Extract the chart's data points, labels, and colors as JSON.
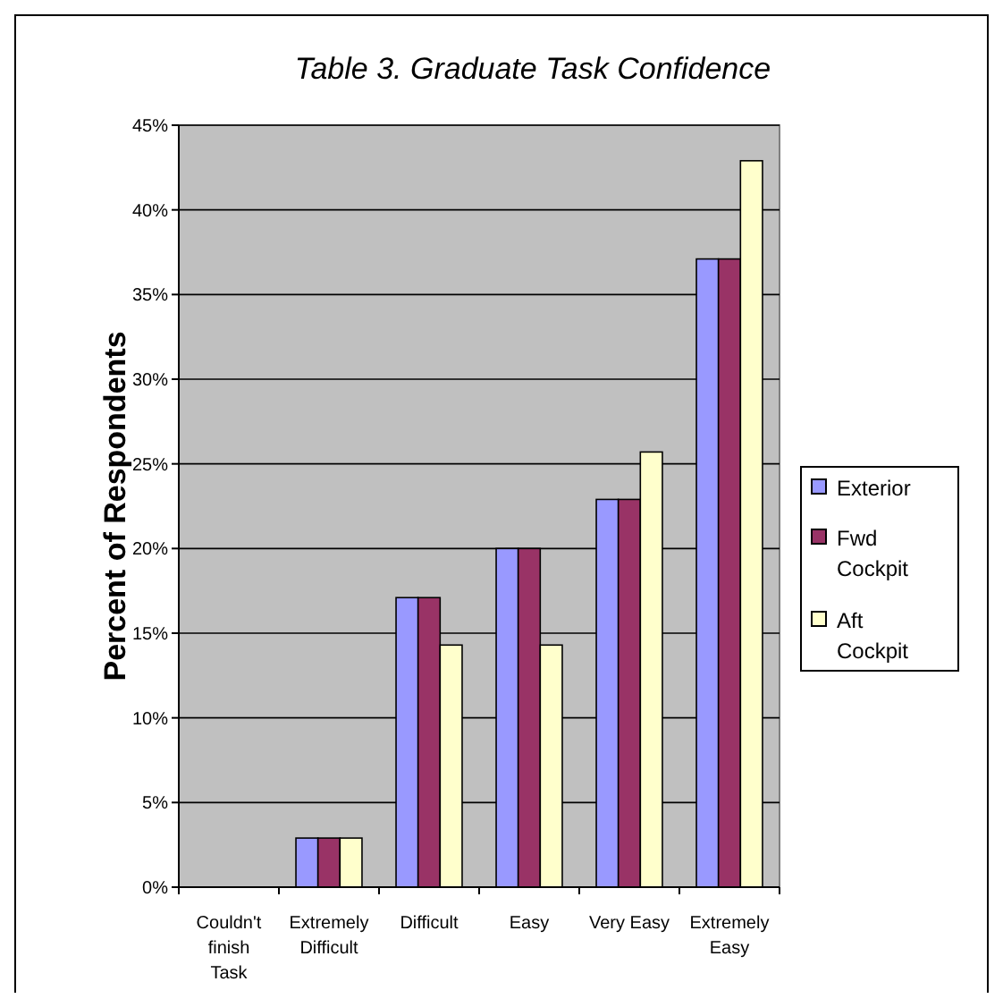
{
  "chart_data": {
    "type": "bar",
    "title": "Table 3.  Graduate Task Confidence",
    "ylabel": "Percent of Respondents",
    "categories": [
      "Couldn't finish Task",
      "Extremely Difficult",
      "Difficult",
      "Easy",
      "Very Easy",
      "Extremely Easy"
    ],
    "series": [
      {
        "name": "Exterior",
        "color": "#9999ff",
        "values": [
          0,
          2.9,
          17.1,
          20,
          22.9,
          37.1
        ]
      },
      {
        "name": "Fwd Cockpit",
        "color": "#993366",
        "values": [
          0,
          2.9,
          17.1,
          20,
          22.9,
          37.1
        ]
      },
      {
        "name": "Aft Cockpit",
        "color": "#ffffcc",
        "values": [
          0,
          2.9,
          14.3,
          14.3,
          25.7,
          42.9
        ]
      }
    ],
    "ylim": [
      0,
      45
    ],
    "yticks": [
      {
        "value": 0,
        "label": "0%"
      },
      {
        "value": 5,
        "label": "5%"
      },
      {
        "value": 10,
        "label": "10%"
      },
      {
        "value": 15,
        "label": "15%"
      },
      {
        "value": 20,
        "label": "20%"
      },
      {
        "value": 25,
        "label": "25%"
      },
      {
        "value": 30,
        "label": "30%"
      },
      {
        "value": 35,
        "label": "35%"
      },
      {
        "value": 40,
        "label": "40%"
      },
      {
        "value": 45,
        "label": "45%"
      }
    ],
    "grid": "y",
    "legend": "right"
  }
}
